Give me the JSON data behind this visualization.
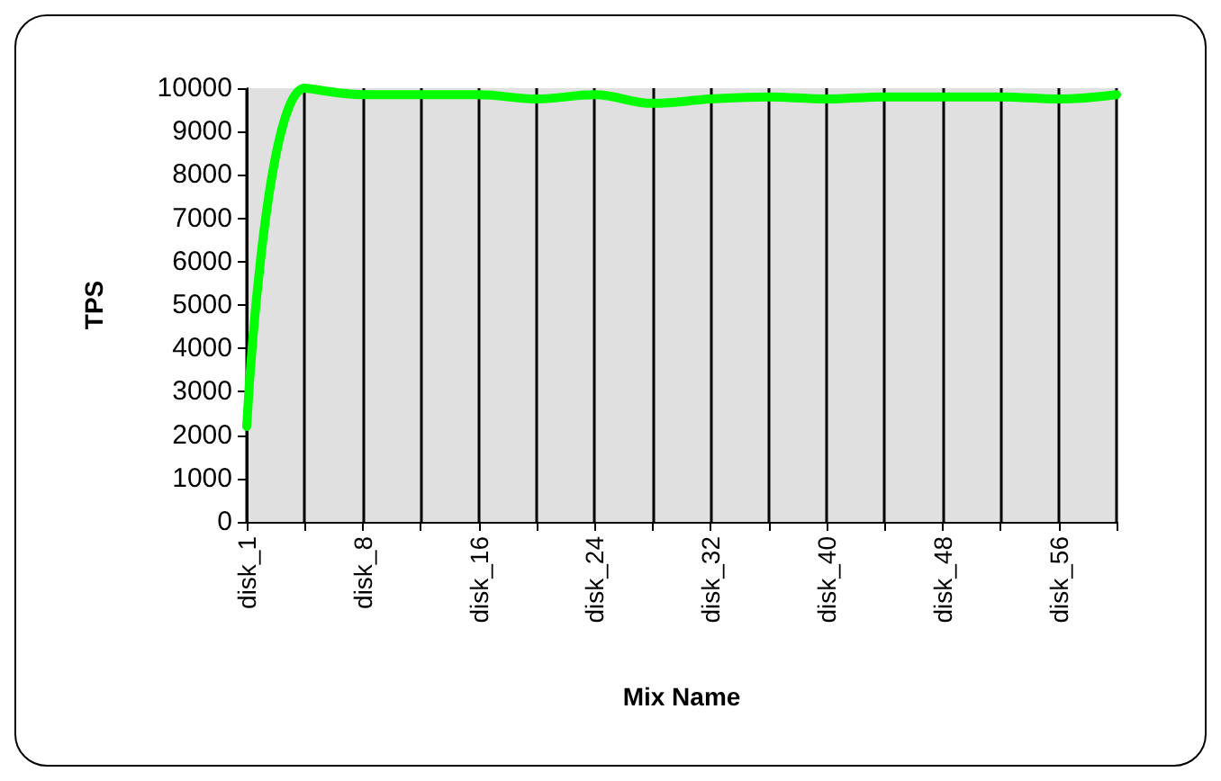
{
  "chart_data": {
    "type": "line",
    "xlabel": "Mix Name",
    "ylabel": "TPS",
    "categories": [
      "disk_1",
      null,
      "disk_8",
      null,
      "disk_16",
      null,
      "disk_24",
      null,
      "disk_32",
      null,
      "disk_40",
      null,
      "disk_48",
      null,
      "disk_56",
      null
    ],
    "series": [
      {
        "color": "#00ff00",
        "values": [
          2200,
          10000,
          9850,
          9850,
          9850,
          9750,
          9850,
          9650,
          9750,
          9800,
          9750,
          9800,
          9800,
          9800,
          9750,
          9850
        ]
      }
    ],
    "ylim": [
      0,
      10000
    ],
    "yticks": [
      0,
      1000,
      2000,
      3000,
      4000,
      5000,
      6000,
      7000,
      8000,
      9000,
      10000
    ],
    "grid": "x",
    "marker": "none",
    "line_style": "solid"
  }
}
